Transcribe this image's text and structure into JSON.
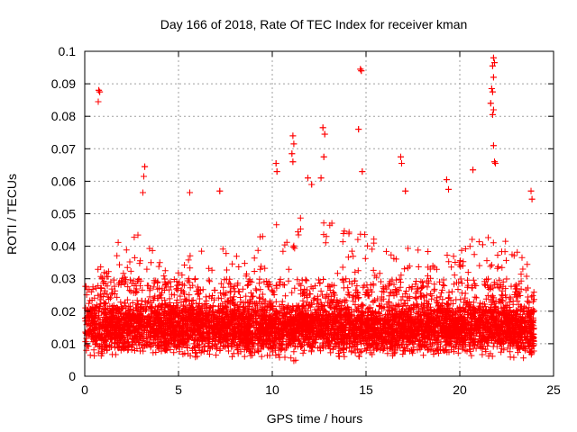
{
  "chart_data": {
    "type": "scatter",
    "title": "Day 166 of 2018, Rate Of TEC Index for receiver kman",
    "xlabel": "GPS time / hours",
    "ylabel": "ROTI / TECUs",
    "xlim": [
      0,
      25
    ],
    "ylim": [
      0,
      0.1
    ],
    "x_ticks": [
      0,
      5,
      10,
      15,
      20,
      25
    ],
    "x_tick_labels": [
      "0",
      "5",
      "10",
      "15",
      "20",
      "25"
    ],
    "y_ticks": [
      0,
      0.01,
      0.02,
      0.03,
      0.04,
      0.05,
      0.06,
      0.07,
      0.08,
      0.09,
      0.1
    ],
    "y_tick_labels": [
      "0",
      "0.01",
      "0.02",
      "0.03",
      "0.04",
      "0.05",
      "0.06",
      "0.07",
      "0.08",
      "0.09",
      "0.1"
    ],
    "grid": true,
    "marker": "plus",
    "series_color": "#ff0000",
    "notable_points": [
      {
        "x": 0.75,
        "y": 0.088
      },
      {
        "x": 0.8,
        "y": 0.0875
      },
      {
        "x": 0.72,
        "y": 0.0845
      },
      {
        "x": 3.2,
        "y": 0.0645
      },
      {
        "x": 3.15,
        "y": 0.0615
      },
      {
        "x": 3.1,
        "y": 0.0565
      },
      {
        "x": 5.6,
        "y": 0.0565
      },
      {
        "x": 7.2,
        "y": 0.057
      },
      {
        "x": 10.2,
        "y": 0.0655
      },
      {
        "x": 10.25,
        "y": 0.063
      },
      {
        "x": 11.1,
        "y": 0.074
      },
      {
        "x": 11.15,
        "y": 0.0715
      },
      {
        "x": 11.05,
        "y": 0.0685
      },
      {
        "x": 11.1,
        "y": 0.066
      },
      {
        "x": 11.9,
        "y": 0.061
      },
      {
        "x": 12.1,
        "y": 0.059
      },
      {
        "x": 12.7,
        "y": 0.0765
      },
      {
        "x": 12.8,
        "y": 0.0745
      },
      {
        "x": 12.75,
        "y": 0.0675
      },
      {
        "x": 12.6,
        "y": 0.061
      },
      {
        "x": 14.7,
        "y": 0.0945
      },
      {
        "x": 14.75,
        "y": 0.094
      },
      {
        "x": 14.6,
        "y": 0.076
      },
      {
        "x": 14.8,
        "y": 0.063
      },
      {
        "x": 16.85,
        "y": 0.0675
      },
      {
        "x": 16.9,
        "y": 0.0655
      },
      {
        "x": 17.1,
        "y": 0.057
      },
      {
        "x": 19.3,
        "y": 0.0605
      },
      {
        "x": 19.4,
        "y": 0.0575
      },
      {
        "x": 20.7,
        "y": 0.0635
      },
      {
        "x": 21.8,
        "y": 0.098
      },
      {
        "x": 21.85,
        "y": 0.0965
      },
      {
        "x": 21.75,
        "y": 0.0955
      },
      {
        "x": 21.8,
        "y": 0.092
      },
      {
        "x": 21.7,
        "y": 0.0885
      },
      {
        "x": 21.75,
        "y": 0.0875
      },
      {
        "x": 21.65,
        "y": 0.084
      },
      {
        "x": 21.8,
        "y": 0.082
      },
      {
        "x": 21.75,
        "y": 0.0805
      },
      {
        "x": 21.8,
        "y": 0.071
      },
      {
        "x": 21.85,
        "y": 0.066
      },
      {
        "x": 21.9,
        "y": 0.0655
      },
      {
        "x": 23.8,
        "y": 0.057
      },
      {
        "x": 23.85,
        "y": 0.0545
      }
    ],
    "activity_envelope": {
      "x_hours": [
        0,
        1,
        2,
        3,
        4,
        5,
        6,
        7,
        8,
        9,
        10,
        11,
        12,
        13,
        14,
        15,
        16,
        17,
        18,
        19,
        20,
        21,
        22,
        23,
        24
      ],
      "typical_min": [
        0.006,
        0.006,
        0.006,
        0.006,
        0.006,
        0.005,
        0.006,
        0.006,
        0.006,
        0.006,
        0.006,
        0.004,
        0.006,
        0.006,
        0.006,
        0.006,
        0.006,
        0.006,
        0.006,
        0.006,
        0.006,
        0.006,
        0.006,
        0.005,
        0.006
      ],
      "typical_max": [
        0.03,
        0.035,
        0.045,
        0.045,
        0.035,
        0.035,
        0.04,
        0.04,
        0.038,
        0.04,
        0.05,
        0.05,
        0.05,
        0.05,
        0.045,
        0.045,
        0.04,
        0.04,
        0.04,
        0.04,
        0.04,
        0.045,
        0.045,
        0.045,
        0.03
      ],
      "dense_band": [
        0.01,
        0.02
      ]
    },
    "total_points_approx": 6000
  }
}
